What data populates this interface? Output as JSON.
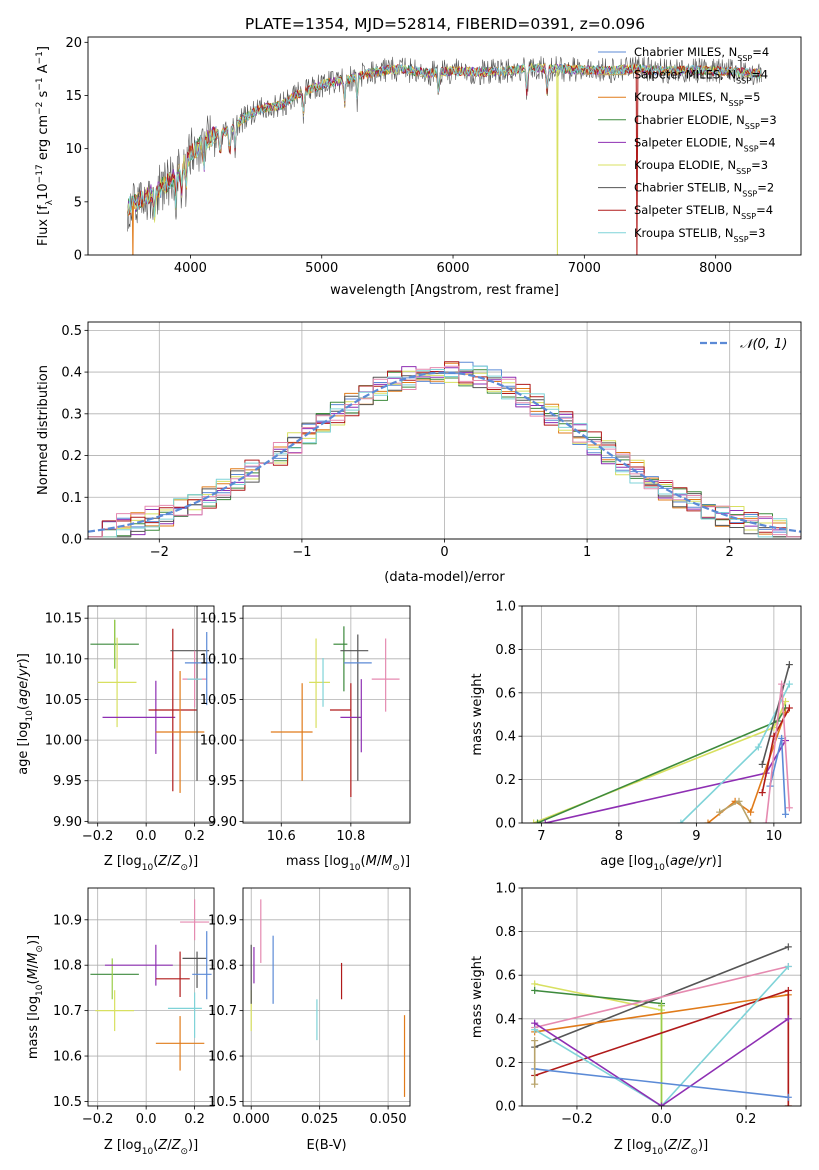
{
  "title": "PLATE=1354, MJD=52814, FIBERID=0391, z=0.096",
  "colors": {
    "c0": "#5b8ad6",
    "c1": "#e07b1a",
    "c2": "#b8a36a",
    "c3": "#3d8a3d",
    "c4": "#8e2fb3",
    "c5": "#d8e060",
    "c6": "#555555",
    "c7": "#b01a1a",
    "c8": "#7fd3d8",
    "c9": "#e58ab0",
    "c10": "#9acd4a"
  },
  "chart_data": [
    {
      "id": "spectrum",
      "type": "line",
      "title": "PLATE=1354, MJD=52814, FIBERID=0391, z=0.096",
      "xlabel": "wavelength [Angstrom, rest frame]",
      "ylabel": "Flux [fλ10⁻¹⁷ erg cm⁻² s⁻¹ A⁻¹]",
      "xlim": [
        3220,
        8650
      ],
      "ylim": [
        0,
        20.5
      ],
      "xticks": [
        4000,
        5000,
        6000,
        7000,
        8000
      ],
      "yticks": [
        0,
        5,
        10,
        15,
        20
      ],
      "legend_position": "top-right",
      "legend": [
        {
          "label": "Chabrier MILES, N",
          "sub": "SSP",
          "suffix": "=4",
          "color": "#5b8ad6"
        },
        {
          "label": "Salpeter MILES, N",
          "sub": "SSP",
          "suffix": "=4",
          "color": "#b8a36a"
        },
        {
          "label": "Kroupa MILES, N",
          "sub": "SSP",
          "suffix": "=5",
          "color": "#e07b1a"
        },
        {
          "label": "Chabrier ELODIE, N",
          "sub": "SSP",
          "suffix": "=3",
          "color": "#3d8a3d"
        },
        {
          "label": "Salpeter ELODIE, N",
          "sub": "SSP",
          "suffix": "=4",
          "color": "#8e2fb3"
        },
        {
          "label": "Kroupa ELODIE, N",
          "sub": "SSP",
          "suffix": "=3",
          "color": "#d8e060"
        },
        {
          "label": "Chabrier STELIB, N",
          "sub": "SSP",
          "suffix": "=2",
          "color": "#555555"
        },
        {
          "label": "Salpeter STELIB, N",
          "sub": "SSP",
          "suffix": "=4",
          "color": "#b01a1a"
        },
        {
          "label": "Kroupa STELIB, N",
          "sub": "SSP",
          "suffix": "=3",
          "color": "#7fd3d8"
        }
      ],
      "continuum": {
        "x": [
          3530,
          3600,
          3700,
          3800,
          3900,
          4000,
          4100,
          4200,
          4300,
          4400,
          4500,
          4600,
          4700,
          4800,
          4900,
          5000,
          5100,
          5200,
          5300,
          5400,
          5500,
          5600,
          5700,
          5800,
          5900,
          6000,
          6200,
          6400,
          6600,
          6800,
          7000,
          7200,
          7400,
          7600,
          7800,
          8000,
          8200,
          8350
        ],
        "y": [
          4.6,
          5.0,
          5.8,
          6.5,
          7.5,
          9.5,
          10.6,
          11.4,
          11.7,
          12.8,
          13.6,
          13.9,
          14.1,
          15.0,
          15.5,
          16.0,
          16.3,
          16.5,
          16.9,
          17.2,
          17.4,
          17.5,
          17.3,
          17.1,
          17.2,
          17.3,
          17.2,
          17.3,
          17.6,
          17.5,
          17.4,
          17.3,
          17.5,
          17.3,
          17.4,
          17.3,
          17.2,
          17.0
        ]
      }
    },
    {
      "id": "residuals",
      "type": "histogram",
      "xlabel": "(data-model)/error",
      "ylabel": "Normed distribution",
      "xlim": [
        -2.5,
        2.5
      ],
      "ylim": [
        0,
        0.52
      ],
      "xticks": [
        -2,
        -1,
        0,
        1,
        2
      ],
      "yticks": [
        0.0,
        0.1,
        0.2,
        0.3,
        0.4,
        0.5
      ],
      "grid": true,
      "legend_position": "top-right",
      "reference": {
        "label": "𝒩(0, 1)",
        "mu": 0,
        "sigma": 1,
        "color": "#5b8ad6"
      }
    },
    {
      "id": "age_vs_z",
      "type": "errorbar",
      "xlabel": "Z [log₁₀(Z/Z⊙)]",
      "ylabel": "age  [log₁₀(age/yr)]",
      "xlim": [
        -0.24,
        0.28
      ],
      "ylim": [
        9.898,
        10.165
      ],
      "xticks": [
        -0.2,
        0.0,
        0.2
      ],
      "yticks": [
        9.9,
        9.95,
        10.0,
        10.05,
        10.1,
        10.15
      ],
      "grid": true,
      "points": [
        {
          "x": -0.13,
          "xerr": 0.1,
          "y": 10.118,
          "yerr": 0.03,
          "color": "#3d8a3d"
        },
        {
          "x": -0.13,
          "xerr": 0.0,
          "y": 10.118,
          "yerr": 0.03,
          "color": "#9acd4a"
        },
        {
          "x": -0.12,
          "xerr": 0.08,
          "y": 10.071,
          "yerr": 0.055,
          "color": "#d8e060"
        },
        {
          "x": -0.03,
          "xerr": 0.15,
          "y": 10.028,
          "yerr": 0.0,
          "color": "#8e2fb3"
        },
        {
          "x": 0.04,
          "xerr": 0.0,
          "y": 10.028,
          "yerr": 0.045,
          "color": "#8e2fb3"
        },
        {
          "x": 0.11,
          "xerr": 0.1,
          "y": 10.037,
          "yerr": 0.1,
          "color": "#b01a1a"
        },
        {
          "x": 0.14,
          "xerr": 0.1,
          "y": 10.01,
          "yerr": 0.075,
          "color": "#e07b1a"
        },
        {
          "x": 0.18,
          "xerr": 0.08,
          "y": 10.11,
          "yerr": 0.0,
          "color": "#555555"
        },
        {
          "x": 0.21,
          "xerr": 0.0,
          "y": 10.06,
          "yerr": 0.11,
          "color": "#555555"
        },
        {
          "x": 0.2,
          "xerr": 0.05,
          "y": 10.075,
          "yerr": 0.035,
          "color": "#e58ab0"
        },
        {
          "x": 0.2,
          "xerr": 0.03,
          "y": 10.075,
          "yerr": 0.0,
          "color": "#7fd3d8"
        },
        {
          "x": 0.22,
          "xerr": 0.06,
          "y": 10.095,
          "yerr": 0.0,
          "color": "#5b8ad6"
        },
        {
          "x": 0.25,
          "xerr": 0.0,
          "y": 10.088,
          "yerr": 0.045,
          "color": "#5b8ad6"
        }
      ]
    },
    {
      "id": "age_vs_mass",
      "type": "errorbar",
      "xlabel": "mass [log₁₀(M/M⊙)]",
      "ylabel": "",
      "xlim": [
        10.49,
        10.97
      ],
      "ylim": [
        9.898,
        10.165
      ],
      "xticks": [
        10.6,
        10.8
      ],
      "yticks": [
        9.9,
        9.95,
        10.0,
        10.05,
        10.1,
        10.15
      ],
      "grid": true,
      "points": [
        {
          "x": 10.63,
          "xerr": 0.06,
          "y": 10.01,
          "yerr": 0.0,
          "color": "#e07b1a"
        },
        {
          "x": 10.66,
          "xerr": 0.0,
          "y": 10.01,
          "yerr": 0.06,
          "color": "#e07b1a"
        },
        {
          "x": 10.71,
          "xerr": 0.03,
          "y": 10.071,
          "yerr": 0.0,
          "color": "#d8e060"
        },
        {
          "x": 10.7,
          "xerr": 0.0,
          "y": 10.07,
          "yerr": 0.055,
          "color": "#d8e060"
        },
        {
          "x": 10.72,
          "xerr": 0.0,
          "y": 10.071,
          "yerr": 0.03,
          "color": "#7fd3d8"
        },
        {
          "x": 10.77,
          "xerr": 0.02,
          "y": 10.118,
          "yerr": 0.0,
          "color": "#3d8a3d"
        },
        {
          "x": 10.78,
          "xerr": 0.0,
          "y": 10.1,
          "yerr": 0.04,
          "color": "#3d8a3d"
        },
        {
          "x": 10.8,
          "xerr": 0.0,
          "y": 10.0,
          "yerr": 0.07,
          "color": "#b01a1a"
        },
        {
          "x": 10.77,
          "xerr": 0.03,
          "y": 10.037,
          "yerr": 0.0,
          "color": "#b01a1a"
        },
        {
          "x": 10.8,
          "xerr": 0.03,
          "y": 10.028,
          "yerr": 0.0,
          "color": "#8e2fb3"
        },
        {
          "x": 10.83,
          "xerr": 0.0,
          "y": 10.03,
          "yerr": 0.045,
          "color": "#8e2fb3"
        },
        {
          "x": 10.82,
          "xerr": 0.0,
          "y": 10.04,
          "yerr": 0.09,
          "color": "#555555"
        },
        {
          "x": 10.81,
          "xerr": 0.04,
          "y": 10.11,
          "yerr": 0.0,
          "color": "#555555"
        },
        {
          "x": 10.82,
          "xerr": 0.04,
          "y": 10.095,
          "yerr": 0.0,
          "color": "#5b8ad6"
        },
        {
          "x": 10.9,
          "xerr": 0.04,
          "y": 10.075,
          "yerr": 0.0,
          "color": "#e58ab0"
        },
        {
          "x": 10.9,
          "xerr": 0.0,
          "y": 10.08,
          "yerr": 0.045,
          "color": "#e58ab0"
        }
      ]
    },
    {
      "id": "weight_vs_age",
      "type": "line",
      "xlabel": "age  [log₁₀(age/yr)]",
      "ylabel": "mass weight",
      "xlim": [
        6.75,
        10.35
      ],
      "ylim": [
        0,
        1.0
      ],
      "xticks": [
        7,
        8,
        9,
        10
      ],
      "yticks": [
        0.0,
        0.2,
        0.4,
        0.6,
        0.8,
        1.0
      ],
      "grid": true,
      "series": [
        {
          "color": "#d8e060",
          "x": [
            6.9,
            10.0,
            10.15
          ],
          "y": [
            0.0,
            0.44,
            0.56
          ]
        },
        {
          "color": "#3d8a3d",
          "x": [
            6.95,
            10.05,
            10.15
          ],
          "y": [
            0.0,
            0.47,
            0.53
          ]
        },
        {
          "color": "#8e2fb3",
          "x": [
            7.05,
            9.9,
            10.15
          ],
          "y": [
            0.0,
            0.23,
            0.38
          ]
        },
        {
          "color": "#7fd3d8",
          "x": [
            8.8,
            9.8,
            10.2
          ],
          "y": [
            0.0,
            0.35,
            0.64
          ]
        },
        {
          "color": "#e07b1a",
          "x": [
            9.15,
            9.5,
            9.7,
            10.15
          ],
          "y": [
            0.0,
            0.1,
            0.05,
            0.51
          ]
        },
        {
          "color": "#b8a36a",
          "x": [
            9.3,
            9.55,
            9.7
          ],
          "y": [
            0.05,
            0.1,
            0.0
          ]
        },
        {
          "color": "#555555",
          "x": [
            9.85,
            10.2
          ],
          "y": [
            0.27,
            0.73
          ]
        },
        {
          "color": "#b01a1a",
          "x": [
            9.85,
            10.0,
            10.2
          ],
          "y": [
            0.14,
            0.4,
            0.53
          ]
        },
        {
          "color": "#5b8ad6",
          "x": [
            9.95,
            10.1,
            10.15
          ],
          "y": [
            0.17,
            0.39,
            0.04
          ]
        },
        {
          "color": "#e58ab0",
          "x": [
            9.9,
            10.1,
            10.2
          ],
          "y": [
            0.0,
            0.64,
            0.07
          ]
        }
      ]
    },
    {
      "id": "mass_vs_z",
      "type": "errorbar",
      "xlabel": "Z [log₁₀(Z/Z⊙)]",
      "ylabel": "mass [log₁₀(M/M⊙)]",
      "xlim": [
        -0.24,
        0.28
      ],
      "ylim": [
        10.49,
        10.97
      ],
      "xticks": [
        -0.2,
        0.0,
        0.2
      ],
      "yticks": [
        10.5,
        10.6,
        10.7,
        10.8,
        10.9
      ],
      "grid": true,
      "points": [
        {
          "x": -0.13,
          "xerr": 0.1,
          "y": 10.78,
          "yerr": 0.0,
          "color": "#3d8a3d"
        },
        {
          "x": -0.14,
          "xerr": 0.0,
          "y": 10.77,
          "yerr": 0.045,
          "color": "#9acd4a"
        },
        {
          "x": -0.13,
          "xerr": 0.08,
          "y": 10.7,
          "yerr": 0.045,
          "color": "#d8e060"
        },
        {
          "x": -0.03,
          "xerr": 0.14,
          "y": 10.8,
          "yerr": 0.0,
          "color": "#8e2fb3"
        },
        {
          "x": 0.04,
          "xerr": 0.0,
          "y": 10.8,
          "yerr": 0.045,
          "color": "#8e2fb3"
        },
        {
          "x": 0.11,
          "xerr": 0.07,
          "y": 10.77,
          "yerr": 0.0,
          "color": "#b01a1a"
        },
        {
          "x": 0.14,
          "xerr": 0.0,
          "y": 10.78,
          "yerr": 0.05,
          "color": "#b01a1a"
        },
        {
          "x": 0.14,
          "xerr": 0.1,
          "y": 10.628,
          "yerr": 0.06,
          "color": "#e07b1a"
        },
        {
          "x": 0.16,
          "xerr": 0.07,
          "y": 10.705,
          "yerr": 0.0,
          "color": "#7fd3d8"
        },
        {
          "x": 0.2,
          "xerr": 0.0,
          "y": 10.69,
          "yerr": 0.05,
          "color": "#7fd3d8"
        },
        {
          "x": 0.2,
          "xerr": 0.05,
          "y": 10.815,
          "yerr": 0.0,
          "color": "#555555"
        },
        {
          "x": 0.21,
          "xerr": 0.0,
          "y": 10.79,
          "yerr": 0.04,
          "color": "#555555"
        },
        {
          "x": 0.2,
          "xerr": 0.06,
          "y": 10.895,
          "yerr": 0.0,
          "color": "#e58ab0"
        },
        {
          "x": 0.2,
          "xerr": 0.0,
          "y": 10.9,
          "yerr": 0.045,
          "color": "#e58ab0"
        },
        {
          "x": 0.23,
          "xerr": 0.04,
          "y": 10.78,
          "yerr": 0.0,
          "color": "#5b8ad6"
        },
        {
          "x": 0.25,
          "xerr": 0.0,
          "y": 10.8,
          "yerr": 0.075,
          "color": "#5b8ad6"
        }
      ]
    },
    {
      "id": "mass_vs_ebv",
      "type": "errorbar",
      "xlabel": "E(B-V)",
      "ylabel": "",
      "xlim": [
        -0.003,
        0.058
      ],
      "ylim": [
        10.49,
        10.97
      ],
      "xticks": [
        0.0,
        0.025,
        0.05
      ],
      "xticklabels": [
        "0.000",
        "0.025",
        "0.050"
      ],
      "yticks": [
        10.5,
        10.6,
        10.7,
        10.8,
        10.9
      ],
      "grid": true,
      "points": [
        {
          "x": 0.0,
          "xerr": 0.0,
          "y": 10.7,
          "yerr": 0.045,
          "color": "#d8e060"
        },
        {
          "x": 0.0,
          "xerr": 0.0,
          "y": 10.78,
          "yerr": 0.065,
          "color": "#555555"
        },
        {
          "x": 0.001,
          "xerr": 0.0,
          "y": 10.8,
          "yerr": 0.04,
          "color": "#8e2fb3"
        },
        {
          "x": 0.0035,
          "xerr": 0.0,
          "y": 10.875,
          "yerr": 0.07,
          "color": "#e58ab0"
        },
        {
          "x": 0.008,
          "xerr": 0.0,
          "y": 10.79,
          "yerr": 0.075,
          "color": "#5b8ad6"
        },
        {
          "x": 0.024,
          "xerr": 0.0,
          "y": 10.68,
          "yerr": 0.045,
          "color": "#7fd3d8"
        },
        {
          "x": 0.033,
          "xerr": 0.0,
          "y": 10.765,
          "yerr": 0.04,
          "color": "#b01a1a"
        },
        {
          "x": 0.056,
          "xerr": 0.0,
          "y": 10.6,
          "yerr": 0.09,
          "color": "#e07b1a"
        }
      ]
    },
    {
      "id": "weight_vs_z",
      "type": "line",
      "xlabel": "Z [log₁₀(Z/Z⊙)]",
      "ylabel": "mass weight",
      "xlim": [
        -0.33,
        0.33
      ],
      "ylim": [
        0,
        1.0
      ],
      "xticks": [
        -0.2,
        0.0,
        0.2
      ],
      "yticks": [
        0.0,
        0.2,
        0.4,
        0.6,
        0.8,
        1.0
      ],
      "grid": true,
      "series": [
        {
          "color": "#d8e060",
          "x": [
            -0.3,
            0.0,
            0.0
          ],
          "y": [
            0.56,
            0.44,
            0.0
          ]
        },
        {
          "color": "#3d8a3d",
          "x": [
            -0.3,
            0.0
          ],
          "y": [
            0.53,
            0.47
          ]
        },
        {
          "color": "#9acd4a",
          "x": [
            0.0,
            0.0
          ],
          "y": [
            0.46,
            0.0
          ]
        },
        {
          "color": "#555555",
          "x": [
            -0.3,
            0.3
          ],
          "y": [
            0.27,
            0.73
          ]
        },
        {
          "color": "#e07b1a",
          "x": [
            -0.3,
            0.3,
            0.3
          ],
          "y": [
            0.34,
            0.51,
            0.0
          ]
        },
        {
          "color": "#b01a1a",
          "x": [
            -0.3,
            0.3,
            0.3
          ],
          "y": [
            0.14,
            0.53,
            0.0
          ]
        },
        {
          "color": "#e58ab0",
          "x": [
            -0.3,
            0.3
          ],
          "y": [
            0.36,
            0.64
          ]
        },
        {
          "color": "#7fd3d8",
          "x": [
            -0.3,
            0.0,
            0.3
          ],
          "y": [
            0.35,
            0.0,
            0.64
          ]
        },
        {
          "color": "#8e2fb3",
          "x": [
            -0.3,
            0.0,
            0.3
          ],
          "y": [
            0.38,
            0.0,
            0.4
          ]
        },
        {
          "color": "#5b8ad6",
          "x": [
            -0.3,
            0.3
          ],
          "y": [
            0.17,
            0.04
          ]
        },
        {
          "color": "#b8a36a",
          "x": [
            -0.3,
            -0.3
          ],
          "y": [
            0.1,
            0.3
          ]
        }
      ]
    }
  ]
}
